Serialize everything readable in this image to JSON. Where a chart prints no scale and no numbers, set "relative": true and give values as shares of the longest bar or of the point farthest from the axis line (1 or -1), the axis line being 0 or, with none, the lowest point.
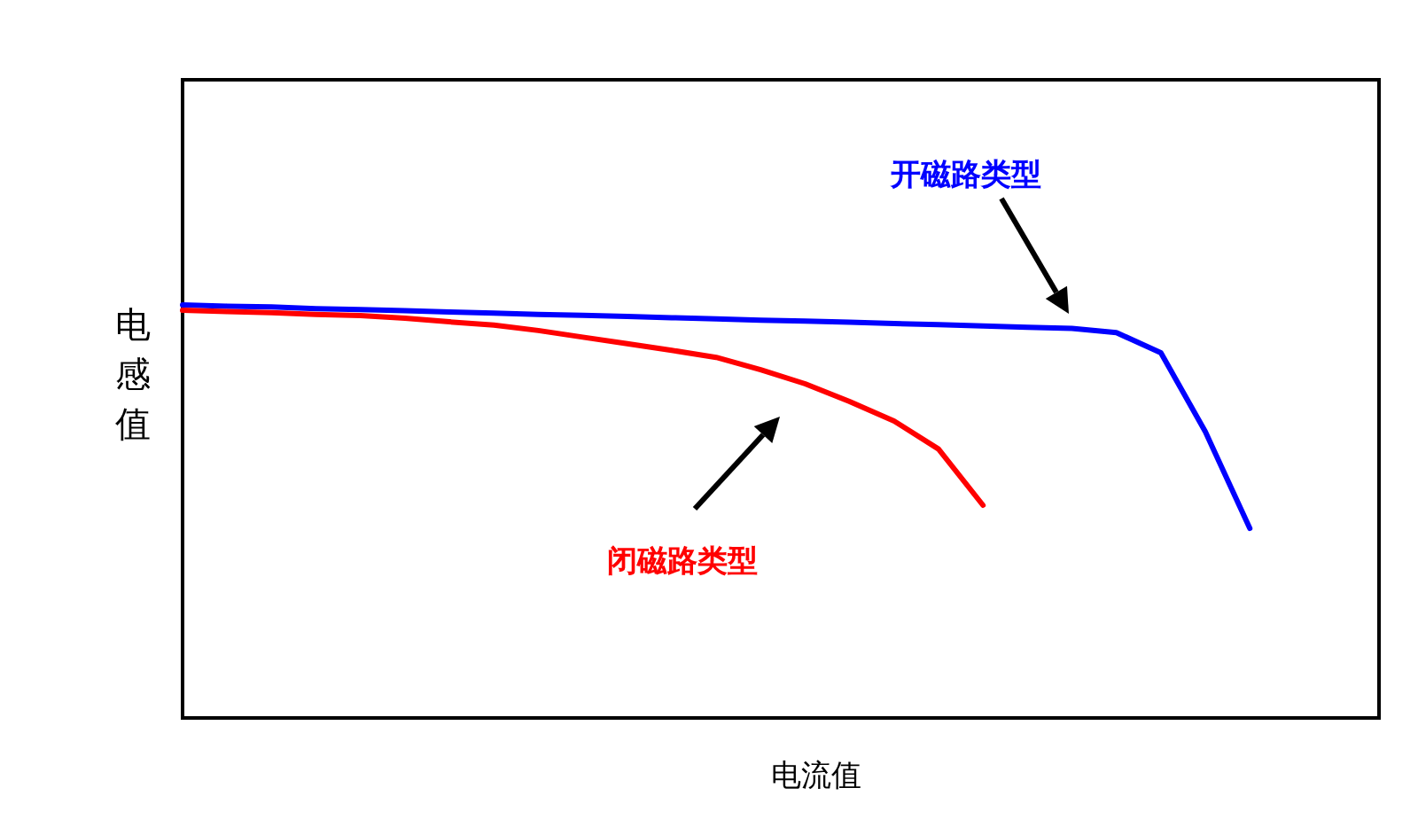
{
  "chart_data": {
    "type": "line",
    "relative": true,
    "xlabel": "电流值",
    "ylabel": "电感值",
    "categories": [
      null,
      null,
      null,
      null,
      null,
      null,
      null,
      null,
      null,
      null,
      null,
      null,
      null,
      null,
      null,
      null,
      null,
      null,
      null,
      null,
      null,
      null,
      null,
      null,
      null
    ],
    "series": [
      {
        "name": "开磁路类型",
        "color": "#0000ff",
        "values": [
          1.0,
          0.997,
          0.995,
          0.991,
          0.989,
          0.986,
          0.983,
          0.98,
          0.977,
          0.975,
          0.972,
          0.969,
          0.966,
          0.963,
          0.961,
          0.958,
          0.955,
          0.952,
          0.949,
          0.946,
          0.943,
          0.933,
          0.884,
          0.693,
          0.459
        ]
      },
      {
        "name": "闭磁路类型",
        "color": "#ff0000",
        "values": [
          0.987,
          0.984,
          0.981,
          0.977,
          0.974,
          0.968,
          0.959,
          0.951,
          0.938,
          0.922,
          0.906,
          0.89,
          0.873,
          0.843,
          0.809,
          0.766,
          0.719,
          0.651,
          0.515,
          null,
          null,
          null,
          null,
          null,
          null
        ]
      }
    ]
  }
}
